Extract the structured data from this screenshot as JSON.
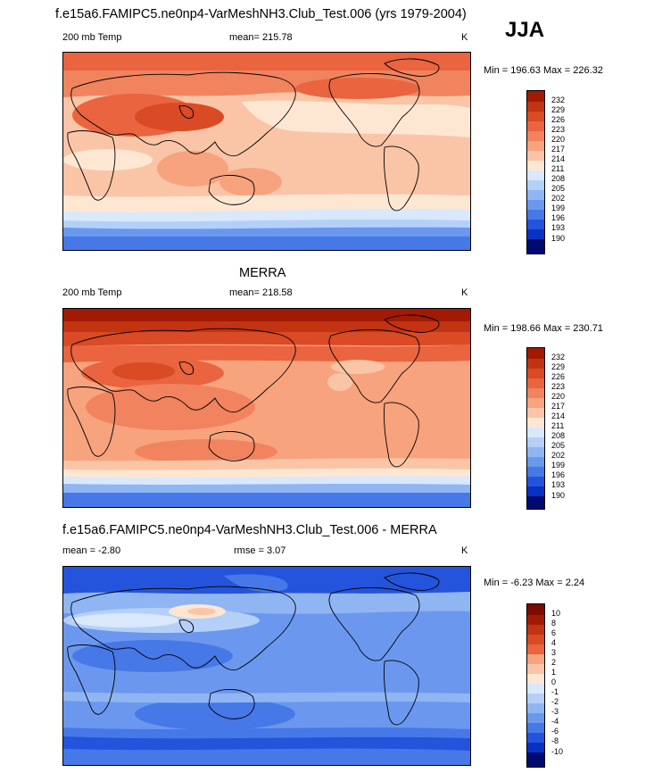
{
  "season": "JJA",
  "colors": {
    "pos": [
      "#fde7d3",
      "#fac5a6",
      "#f7a37e",
      "#f1835e",
      "#e9643f",
      "#d94a25",
      "#c23312",
      "#a21a05",
      "#7d0b00"
    ],
    "neg": [
      "#d9e8fb",
      "#b5d0f8",
      "#90b5f3",
      "#6b98ee",
      "#4678e8",
      "#2454dc",
      "#0a32c2",
      "#001e9c",
      "#000a70"
    ]
  },
  "panels": [
    {
      "title": "f.e15a6.FAMIPC5.ne0np4-VarMeshNH3.Club_Test.006 (yrs 1979-2004)",
      "left": "200 mb Temp",
      "center": "mean= 215.78",
      "right": "K",
      "minmax": "Min = 196.63 Max = 226.32",
      "colorbar_labels": [
        "232",
        "229",
        "226",
        "223",
        "220",
        "217",
        "214",
        "211",
        "208",
        "205",
        "202",
        "199",
        "196",
        "193",
        "190"
      ]
    },
    {
      "title": "MERRA",
      "left": "200 mb Temp",
      "center": "mean= 218.58",
      "right": "K",
      "minmax": "Min = 198.66 Max = 230.71",
      "colorbar_labels": [
        "232",
        "229",
        "226",
        "223",
        "220",
        "217",
        "214",
        "211",
        "208",
        "205",
        "202",
        "199",
        "196",
        "193",
        "190"
      ]
    },
    {
      "title": "f.e15a6.FAMIPC5.ne0np4-VarMeshNH3.Club_Test.006 - MERRA",
      "left": "mean =  -2.80",
      "center": "rmse =   3.07",
      "right": "K",
      "minmax": "Min =  -6.23 Max =   2.24",
      "colorbar_labels": [
        "10",
        "8",
        "6",
        "4",
        "3",
        "2",
        "1",
        "0",
        "-1",
        "-2",
        "-3",
        "-4",
        "-6",
        "-8",
        "-10"
      ]
    }
  ]
}
